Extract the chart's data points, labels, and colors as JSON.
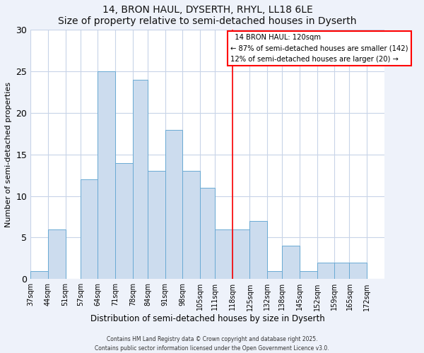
{
  "title": "14, BRON HAUL, DYSERTH, RHYL, LL18 6LE",
  "subtitle": "Size of property relative to semi-detached houses in Dyserth",
  "xlabel": "Distribution of semi-detached houses by size in Dyserth",
  "ylabel": "Number of semi-detached properties",
  "bar_heights": [
    1,
    6,
    0,
    12,
    25,
    14,
    24,
    13,
    18,
    13,
    11,
    6,
    6,
    7,
    1,
    4,
    1,
    2,
    2,
    2
  ],
  "bin_edges": [
    37,
    44,
    51,
    57,
    64,
    71,
    78,
    84,
    91,
    98,
    105,
    111,
    118,
    125,
    132,
    138,
    145,
    152,
    159,
    165,
    172
  ],
  "x_tick_labels": [
    "37sqm",
    "44sqm",
    "51sqm",
    "57sqm",
    "64sqm",
    "71sqm",
    "78sqm",
    "84sqm",
    "91sqm",
    "98sqm",
    "105sqm",
    "111sqm",
    "118sqm",
    "125sqm",
    "132sqm",
    "138sqm",
    "145sqm",
    "152sqm",
    "159sqm",
    "165sqm",
    "172sqm"
  ],
  "bar_color": "#ccdcee",
  "bar_edge_color": "#6aaad4",
  "vline_x": 118,
  "vline_color": "red",
  "ylim": [
    0,
    30
  ],
  "yticks": [
    0,
    5,
    10,
    15,
    20,
    25,
    30
  ],
  "grid_color": "#c8d4e8",
  "plot_bg_color": "#ffffff",
  "fig_bg_color": "#eef2fa",
  "annotation_title": "14 BRON HAUL: 120sqm",
  "annotation_line1": "← 87% of semi-detached houses are smaller (142)",
  "annotation_line2": "12% of semi-detached houses are larger (20) →",
  "annotation_box_color": "#ffffff",
  "annotation_border_color": "red",
  "footer1": "Contains HM Land Registry data © Crown copyright and database right 2025.",
  "footer2": "Contains public sector information licensed under the Open Government Licence v3.0."
}
